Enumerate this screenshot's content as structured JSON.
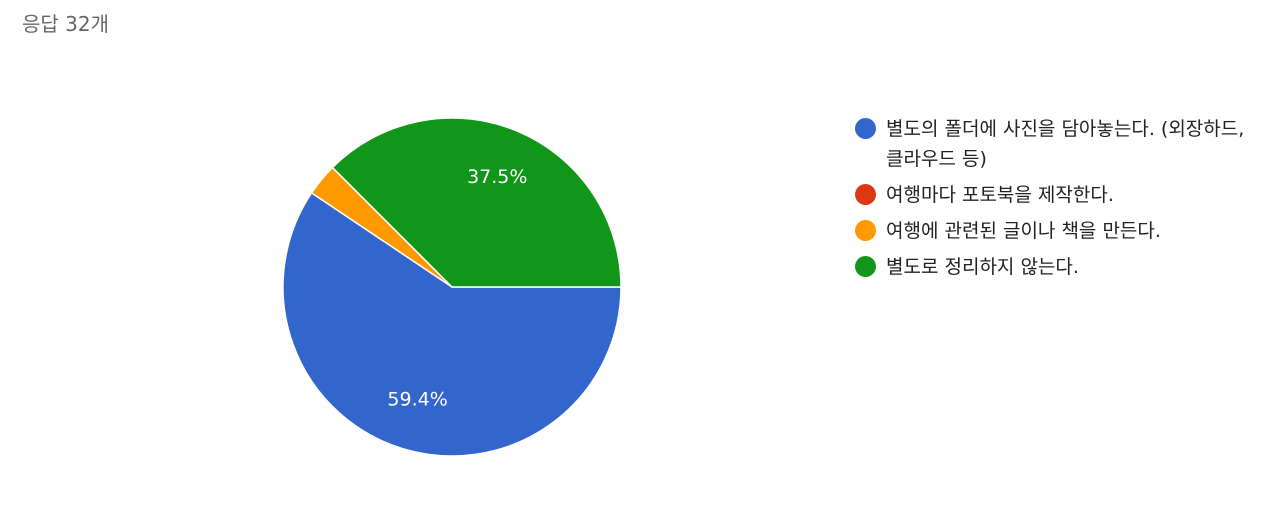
{
  "chart_data": {
    "type": "pie",
    "title": "응답 32개",
    "series": [
      {
        "name": "별도의 폴더에 사진을 담아놓는다. (외장하드, 클라우드 등)",
        "color": "#3366cc"
      },
      {
        "name": "여행마다 포토북을 제작한다.",
        "color": "#dc3912"
      },
      {
        "name": "여행에 관련된 글이나 책을 만든다.",
        "color": "#ff9900"
      },
      {
        "name": "별도로 정리하지 않는다.",
        "color": "#109618"
      }
    ],
    "values": [
      59.4,
      0,
      3.1,
      37.5
    ],
    "value_labels": [
      "59.4%",
      null,
      null,
      "37.5%"
    ],
    "legend": "right"
  }
}
